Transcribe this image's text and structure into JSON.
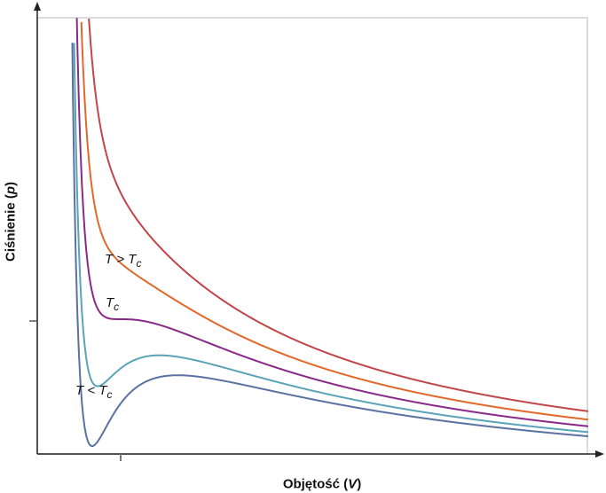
{
  "chart_data": {
    "type": "line",
    "title": "",
    "xlabel": "Objętość (V)",
    "ylabel": "Ciśnienie (p)",
    "xlabel_parts": {
      "text": "Objętość (",
      "var": "V",
      "close": ")"
    },
    "ylabel_parts": {
      "text": "Ciśnienie (",
      "var": "p",
      "close": ")"
    },
    "grid": false,
    "annotations": [
      {
        "T": "T",
        "op": " > ",
        "Tc": "T",
        "sub": "c"
      },
      {
        "T": "",
        "op": "",
        "Tc": "T",
        "sub": "c"
      },
      {
        "T": "T",
        "op": " < ",
        "Tc": "T",
        "sub": "c"
      }
    ],
    "series": [
      {
        "T_reduced": 1.18,
        "color": "#c0464a"
      },
      {
        "T_reduced": 1.08,
        "color": "#e0692a"
      },
      {
        "T_reduced": 1.0,
        "color": "#8a2a88"
      },
      {
        "T_reduced": 0.93,
        "color": "#5ba4b8"
      },
      {
        "T_reduced": 0.88,
        "color": "#5a72a0"
      }
    ]
  }
}
